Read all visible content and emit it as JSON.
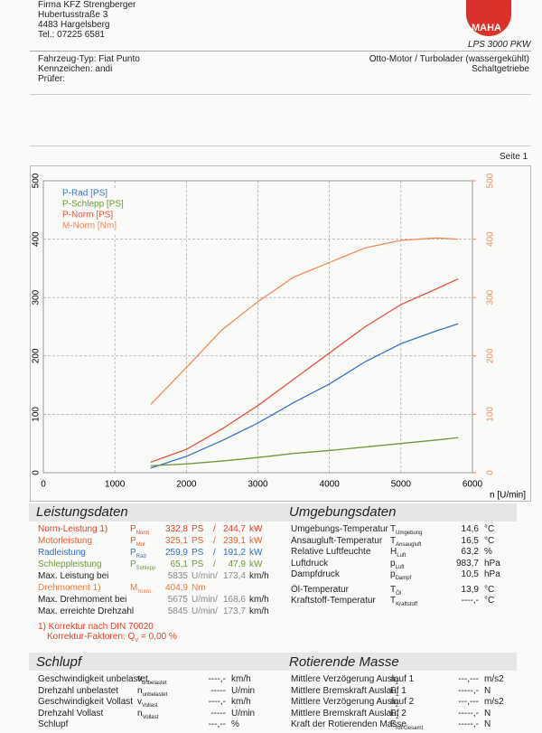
{
  "header": {
    "company": [
      "Firma KFZ Strengberger",
      "Hubertusstraße 3",
      "4483 Hargelsberg",
      "Tel.: 07225 6581"
    ],
    "logo": "MAHA",
    "model": "LPS 3000 PKW"
  },
  "vehicle": {
    "left": [
      "Fahrzeug-Typ: Fiat Punto",
      "Kennzeichen:  andi",
      "Prüfer:"
    ],
    "right": [
      "Otto-Motor / Turbolader (wassergekühlt)",
      "Schaltgetriebe"
    ]
  },
  "page_label": "Seite 1",
  "chart_data": {
    "type": "line",
    "x": [
      1500,
      2000,
      2500,
      3000,
      3500,
      4000,
      4500,
      5000,
      5500,
      5800
    ],
    "xlim": [
      0,
      6000
    ],
    "xticks": [
      0,
      1000,
      2000,
      3000,
      4000,
      5000,
      6000
    ],
    "x_label": "n [U/min]",
    "ylim": [
      0,
      500
    ],
    "yticks": [
      0,
      100,
      200,
      300,
      400,
      500
    ],
    "y2lim": [
      0,
      500
    ],
    "y2ticks": [
      0,
      100,
      200,
      300,
      400,
      500
    ],
    "grid": true,
    "legend": "upper left",
    "series": [
      {
        "name": "P-Rad [PS]",
        "color": "#3a74c4",
        "values": [
          8,
          28,
          55,
          85,
          120,
          152,
          190,
          221,
          243,
          255
        ]
      },
      {
        "name": "P-Schlepp [PS]",
        "color": "#6f9a3a",
        "values": [
          12,
          15,
          20,
          26,
          33,
          38,
          44,
          50,
          56,
          60
        ]
      },
      {
        "name": "P-Norm [PS]",
        "color": "#e8543c",
        "values": [
          18,
          40,
          75,
          115,
          160,
          205,
          250,
          288,
          315,
          332
        ]
      },
      {
        "name": "M-Norm [Nm]",
        "color": "#f28b5e",
        "axis": "y2",
        "values": [
          117,
          180,
          245,
          293,
          335,
          360,
          385,
          398,
          402,
          400
        ]
      }
    ]
  },
  "leistung": {
    "title": "Leistungsdaten",
    "rows": [
      {
        "label": "Norm-Leistung 1)",
        "sym": {
          "base": "P",
          "sub": "Norm"
        },
        "values": [
          "332,8",
          "PS",
          "/",
          "244,7",
          "kW"
        ],
        "color": "#e0402a"
      },
      {
        "label": "Motorleistung",
        "sym": {
          "base": "P",
          "sub": "Mot"
        },
        "values": [
          "325,1",
          "PS",
          "/",
          "239,1",
          "kW"
        ],
        "color": "#e8602a"
      },
      {
        "label": "Radleistung",
        "sym": {
          "base": "P",
          "sub": "Rad"
        },
        "values": [
          "259,9",
          "PS",
          "/",
          "191,2",
          "kW"
        ],
        "color": "#2f6fc0"
      },
      {
        "label": "Schleppleistung",
        "sym": {
          "base": "P",
          "sub": "Schlepp"
        },
        "values": [
          "65,1",
          "PS",
          "/",
          "47,9",
          "kW"
        ],
        "color": "#6f9a3a"
      },
      {
        "label": "Max. Leistung bei",
        "values": [
          "5835",
          "U/min/",
          "173,4",
          "km/h"
        ]
      },
      {
        "label": "Drehmoment 1)",
        "sym": {
          "base": "M",
          "sub": "Norm"
        },
        "values": [
          "404,9",
          "Nm"
        ],
        "color": "#f07a3a"
      },
      {
        "label": "Max. Drehmoment bei",
        "values": [
          "5675",
          "U/min/",
          "168,6",
          "km/h"
        ]
      },
      {
        "label": "Max. erreichte Drehzahl",
        "values": [
          "5845",
          "U/min/",
          "173,7",
          "km/h"
        ]
      }
    ],
    "notes": [
      "1) Korrektur nach DIN 70020",
      "Korrektur-Faktoren: Q",
      "V",
      " =  0,00 %"
    ]
  },
  "umgebung": {
    "title": "Umgebungsdaten",
    "rows": [
      {
        "label": "Umgebungs-Temperatur",
        "sym": {
          "base": "T",
          "sub": "Umgebung"
        },
        "values": [
          "14,6",
          "°C"
        ]
      },
      {
        "label": "Ansaugluft-Temperatur",
        "sym": {
          "base": "T",
          "sub": "Ansaugluft"
        },
        "values": [
          "16,5",
          "°C"
        ]
      },
      {
        "label": "Relative Luftfeuchte",
        "sym": {
          "base": "H",
          "sub": "Luft"
        },
        "values": [
          "63,2",
          "%"
        ]
      },
      {
        "label": "Luftdruck",
        "sym": {
          "base": "p",
          "sub": "Luft"
        },
        "values": [
          "983,7",
          "hPa"
        ]
      },
      {
        "label": "Dampfdruck",
        "sym": {
          "base": "p",
          "sub": "Dampf"
        },
        "values": [
          "10,5",
          "hPa"
        ]
      },
      {
        "label": "Öl-Temperatur",
        "sym": {
          "base": "T",
          "sub": "Öl"
        },
        "values": [
          "13,9",
          "°C"
        ]
      },
      {
        "label": "Kraftstoff-Temperatur",
        "sym": {
          "base": "T",
          "sub": "Kraftstoff"
        },
        "values": [
          "----,-",
          "°C"
        ]
      }
    ]
  },
  "schlupf": {
    "title": "Schlupf",
    "rows": [
      {
        "label": "Geschwindigkeit unbelastet",
        "sym": {
          "base": "v",
          "sub": "unbelastet"
        },
        "values": [
          "----,-",
          "km/h"
        ]
      },
      {
        "label": "Drehzahl unbelastet",
        "sym": {
          "base": "n",
          "sub": "unbelastet"
        },
        "values": [
          "-----",
          "U/min"
        ]
      },
      {
        "label": "Geschwindigkeit Vollast",
        "sym": {
          "base": "v",
          "sub": "Vollast"
        },
        "values": [
          "----,-",
          "km/h"
        ]
      },
      {
        "label": "Drehzahl Vollast",
        "sym": {
          "base": "n",
          "sub": "Vollast"
        },
        "values": [
          "-----",
          "U/min"
        ]
      },
      {
        "label": "Schlupf",
        "values": [
          "---,--",
          "%"
        ]
      }
    ]
  },
  "rotierend": {
    "title": "Rotierende Masse",
    "rows": [
      {
        "label": "Mittlere Verzögerung Auslauf 1",
        "sym": {
          "base": "a",
          "sub": "1"
        },
        "values": [
          "---,---",
          "m/s2"
        ]
      },
      {
        "label": "Mittlere Bremskraft Auslauf 1",
        "sym": {
          "base": "F",
          "sub": "1"
        },
        "values": [
          "-----,-",
          "N"
        ]
      },
      {
        "label": "Mittlere Verzögerung Auslauf 2",
        "sym": {
          "base": "a",
          "sub": "2"
        },
        "values": [
          "---,---",
          "m/s2"
        ]
      },
      {
        "label": "Mittlere Bremskraft Auslauf 2",
        "sym": {
          "base": "F",
          "sub": "2"
        },
        "values": [
          "-----,-",
          "N"
        ]
      },
      {
        "label": "Kraft der Rotierenden Masse",
        "sym": {
          "base": "F",
          "sub": "rot-Gesamt"
        },
        "values": [
          "-----,-",
          "N"
        ]
      }
    ]
  }
}
